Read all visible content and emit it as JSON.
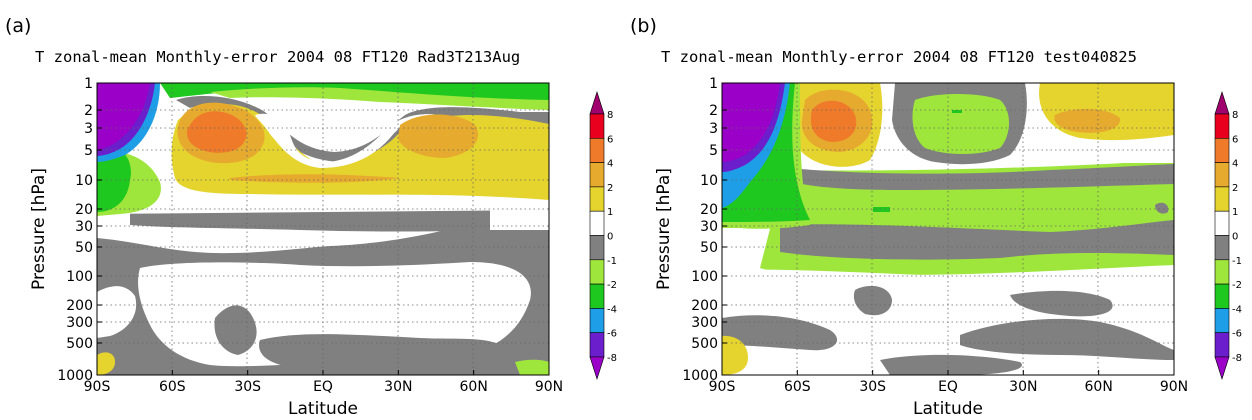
{
  "chart_data": [
    {
      "type": "heatmap",
      "panel_label": "(a)",
      "title": "T zonal-mean Monthly-error 2004 08 FT120 Rad3T213Aug",
      "xlabel": "Latitude",
      "ylabel": "Pressure [hPa]",
      "x_ticks": [
        "90S",
        "60S",
        "30S",
        "EQ",
        "30N",
        "60N",
        "90N"
      ],
      "y_ticks": [
        "1",
        "2",
        "3",
        "5",
        "10",
        "20",
        "30",
        "50",
        "100",
        "200",
        "300",
        "500",
        "1000"
      ],
      "y_scale": "log",
      "xlim": [
        -90,
        90
      ],
      "ylim": [
        1000,
        1
      ],
      "grid": "dotted",
      "colorbar": {
        "levels": [
          -8,
          -6,
          -4,
          -2,
          -1,
          0,
          1,
          2,
          4,
          6,
          8
        ],
        "labels": [
          "8",
          "6",
          "4",
          "2",
          "1",
          "0",
          "-1",
          "-2",
          "-4",
          "-6",
          "-8"
        ],
        "colors": [
          "#a0006e",
          "#e8001e",
          "#ef7a2a",
          "#e6ab2e",
          "#e6d42e",
          "#ffffff",
          "#808080",
          "#9ee63c",
          "#1ec81e",
          "#1e9ee6",
          "#6a1ecc",
          "#9a00c8"
        ],
        "extend": "both"
      },
      "contours": [
        {
          "level": "1 to 2",
          "bounds": [
            [
              -75,
              -5
            ],
            [
              -20,
              2
            ]
          ],
          "color": "#e6d42e"
        },
        {
          "level": "2 to 4",
          "bounds": [
            [
              -62,
              1.6
            ],
            [
              -28,
              4.5
            ]
          ],
          "color": "#e6ab2e"
        },
        {
          "level": "4 to 6",
          "bounds": [
            [
              -52,
              2.2
            ],
            [
              -36,
              3.8
            ]
          ],
          "color": "#ef7a2a"
        },
        {
          "level": "-1 to 0",
          "bounds": [
            [
              -75,
              18
            ],
            [
              70,
              60
            ]
          ],
          "color": "#808080"
        },
        {
          "level": "-2 to -1",
          "bounds": [
            [
              -65,
              1
            ],
            [
              70,
              1.8
            ]
          ],
          "color": "#9ee63c"
        },
        {
          "level": "-8 to -6",
          "bounds": [
            [
              -90,
              1
            ],
            [
              -82,
              5
            ]
          ],
          "color": "#9a00c8"
        }
      ]
    },
    {
      "type": "heatmap",
      "panel_label": "(b)",
      "title": "T zonal-mean Monthly-error 2004 08 FT120 test040825",
      "xlabel": "Latitude",
      "ylabel": "Pressure [hPa]",
      "x_ticks": [
        "90S",
        "60S",
        "30S",
        "EQ",
        "30N",
        "60N",
        "90N"
      ],
      "y_ticks": [
        "1",
        "2",
        "3",
        "5",
        "10",
        "20",
        "30",
        "50",
        "100",
        "200",
        "300",
        "500",
        "1000"
      ],
      "y_scale": "log",
      "xlim": [
        -90,
        90
      ],
      "ylim": [
        1000,
        1
      ],
      "grid": "dotted",
      "colorbar": {
        "levels": [
          -8,
          -6,
          -4,
          -2,
          -1,
          0,
          1,
          2,
          4,
          6,
          8
        ],
        "labels": [
          "8",
          "6",
          "4",
          "2",
          "1",
          "0",
          "-1",
          "-2",
          "-4",
          "-6",
          "-8"
        ],
        "colors": [
          "#a0006e",
          "#e8001e",
          "#ef7a2a",
          "#e6ab2e",
          "#e6d42e",
          "#ffffff",
          "#808080",
          "#9ee63c",
          "#1ec81e",
          "#1e9ee6",
          "#6a1ecc",
          "#9a00c8"
        ],
        "extend": "both"
      },
      "contours": [
        {
          "level": "1 to 2",
          "bounds": [
            [
              -58,
              1
            ],
            [
              -25,
              5
            ]
          ],
          "color": "#e6d42e"
        },
        {
          "level": "2 to 4",
          "bounds": [
            [
              -58,
              1.8
            ],
            [
              -30,
              4.6
            ]
          ],
          "color": "#e6ab2e"
        },
        {
          "level": "4 to 6",
          "bounds": [
            [
              -52,
              2.3
            ],
            [
              -38,
              4
            ]
          ],
          "color": "#ef7a2a"
        },
        {
          "level": "-2 to -1",
          "bounds": [
            [
              -75,
              7
            ],
            [
              90,
              60
            ]
          ],
          "color": "#9ee63c"
        },
        {
          "level": "-1 to 0",
          "bounds": [
            [
              -65,
              8
            ],
            [
              90,
              80
            ]
          ],
          "color": "#808080"
        },
        {
          "level": "-4 to -2",
          "bounds": [
            [
              -80,
              5
            ],
            [
              -62,
              40
            ]
          ],
          "color": "#1ec81e"
        },
        {
          "level": "-8 to -6",
          "bounds": [
            [
              -90,
              1
            ],
            [
              -78,
              5
            ]
          ],
          "color": "#9a00c8"
        }
      ]
    }
  ]
}
